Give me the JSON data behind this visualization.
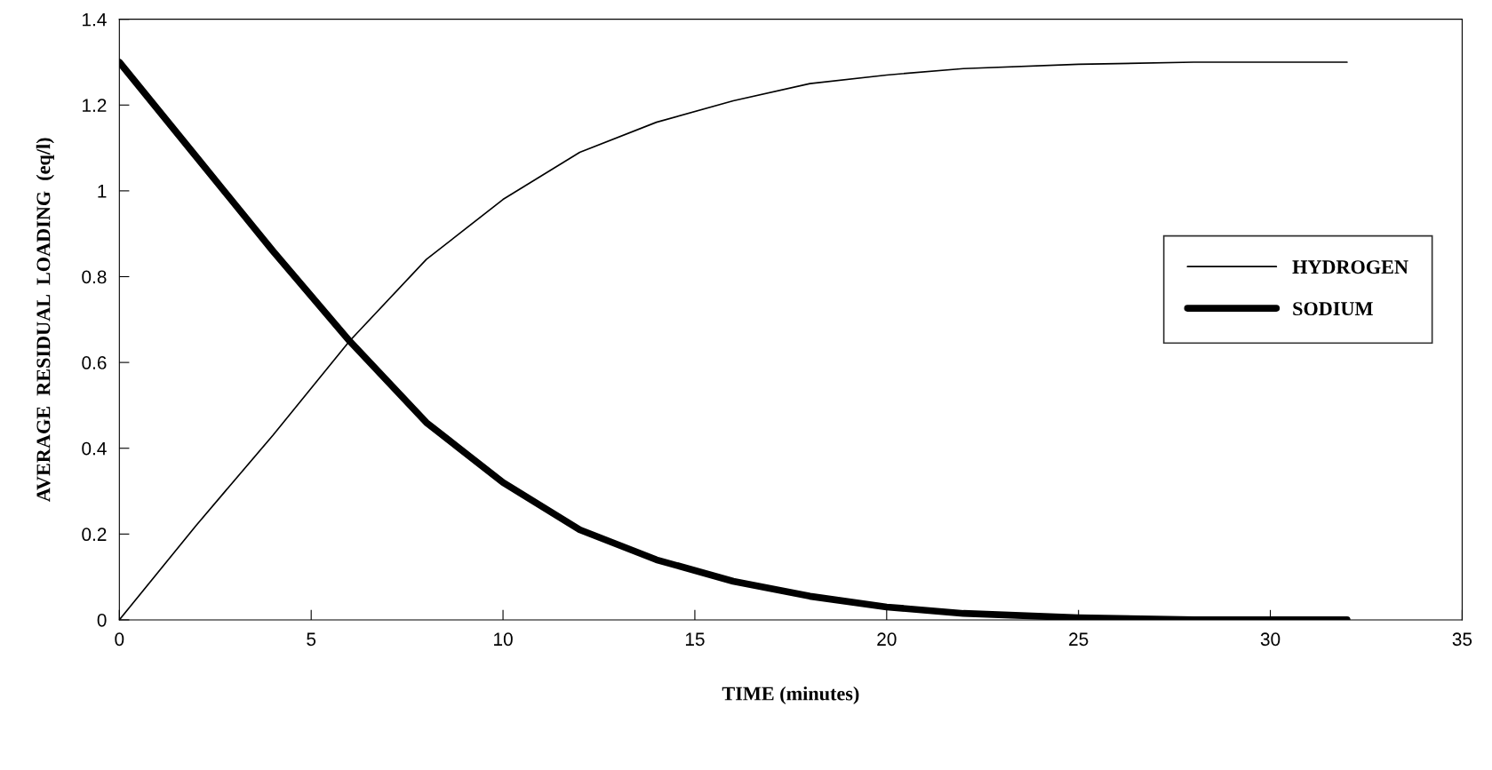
{
  "chart_data": {
    "type": "line",
    "xlabel": "TIME (minutes)",
    "ylabel": "AVERAGE  RESIDUAL  LOADING  (eq/l)",
    "x": [
      0,
      2,
      4,
      6,
      8,
      10,
      12,
      14,
      16,
      18,
      20,
      22,
      25,
      28,
      32
    ],
    "series": [
      {
        "name": "HYDROGEN",
        "color": "#000000",
        "values": [
          0,
          0.22,
          0.43,
          0.65,
          0.84,
          0.98,
          1.09,
          1.16,
          1.21,
          1.25,
          1.27,
          1.285,
          1.295,
          1.3,
          1.3
        ]
      },
      {
        "name": "SODIUM",
        "color": "#000000",
        "values": [
          1.3,
          1.08,
          0.86,
          0.65,
          0.46,
          0.32,
          0.21,
          0.14,
          0.09,
          0.055,
          0.03,
          0.015,
          0.005,
          0,
          0
        ]
      }
    ],
    "xlim": [
      0,
      35
    ],
    "xticks": [
      0,
      5,
      10,
      15,
      20,
      25,
      30,
      35
    ],
    "ylim": [
      0,
      1.4
    ],
    "yticks": [
      0,
      0.2,
      0.4,
      0.6,
      0.8,
      1,
      1.2,
      1.4
    ],
    "grid": false,
    "legend": "right",
    "marker": "none",
    "line_style": "solid"
  }
}
